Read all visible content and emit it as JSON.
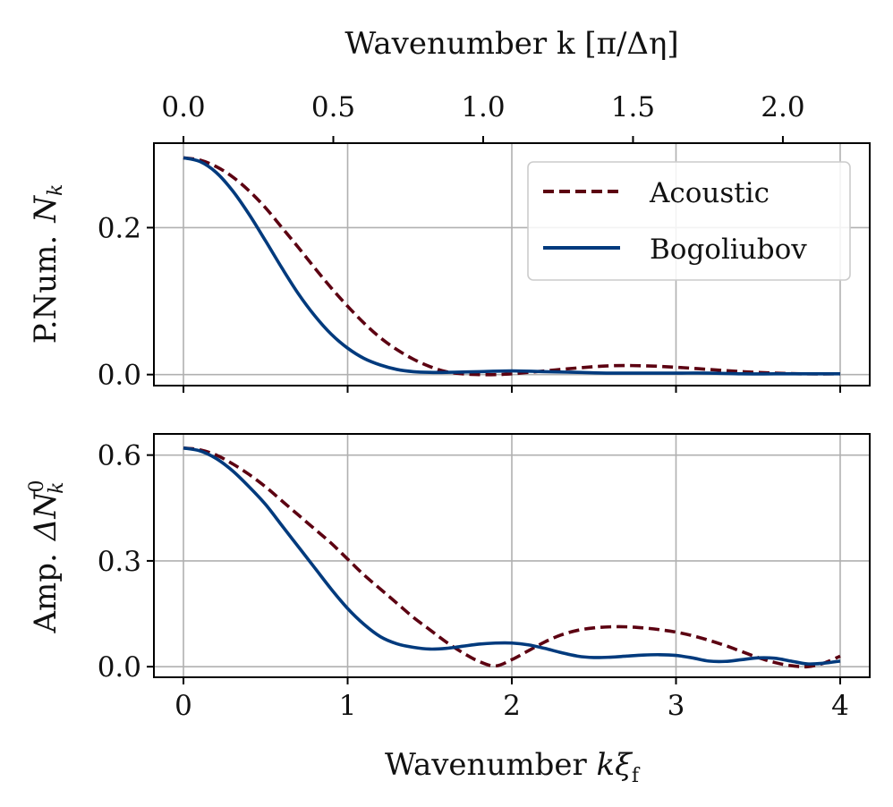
{
  "chart_data": [
    {
      "id": "top",
      "type": "line",
      "top_axis": {
        "label": "Wavenumber k [π/Δη]",
        "ticks": [
          0.0,
          0.5,
          1.0,
          1.5,
          2.0
        ],
        "tick_labels": [
          "0.0",
          "0.5",
          "1.0",
          "1.5",
          "2.0"
        ],
        "scale_per_x": 0.5478
      },
      "xlabel": "",
      "ylabel": "P.Num. N_k",
      "ylabel_text": "P.Num.",
      "ylabel_symbol": "N",
      "ylabel_sub": "k",
      "xlim": [
        -0.18,
        4.18
      ],
      "ylim": [
        -0.015,
        0.315
      ],
      "xticks": [
        0,
        1,
        2,
        3,
        4
      ],
      "yticks": [
        0.0,
        0.2
      ],
      "ytick_labels": [
        "0.0",
        "0.2"
      ],
      "grid": true,
      "legend": {
        "placement": "top-right",
        "entries": [
          "Acoustic",
          "Bogoliubov"
        ]
      },
      "series": [
        {
          "name": "Acoustic",
          "color": "#5c0011",
          "style": "dashed",
          "x": [
            0.0,
            0.1,
            0.2,
            0.3,
            0.4,
            0.5,
            0.6,
            0.7,
            0.8,
            0.9,
            1.0,
            1.1,
            1.2,
            1.3,
            1.4,
            1.5,
            1.6,
            1.7,
            1.8,
            1.9,
            2.0,
            2.2,
            2.4,
            2.6,
            2.8,
            3.0,
            3.2,
            3.4,
            3.6,
            3.8,
            4.0
          ],
          "values": [
            0.295,
            0.292,
            0.283,
            0.269,
            0.25,
            0.227,
            0.2,
            0.173,
            0.145,
            0.118,
            0.093,
            0.07,
            0.05,
            0.034,
            0.021,
            0.011,
            0.004,
            0.001,
            0.0,
            0.0,
            0.001,
            0.005,
            0.009,
            0.012,
            0.012,
            0.01,
            0.007,
            0.004,
            0.002,
            0.001,
            0.001
          ]
        },
        {
          "name": "Bogoliubov",
          "color": "#003a7d",
          "style": "solid",
          "x": [
            0.0,
            0.1,
            0.2,
            0.3,
            0.4,
            0.5,
            0.6,
            0.7,
            0.8,
            0.9,
            1.0,
            1.1,
            1.2,
            1.3,
            1.4,
            1.5,
            1.6,
            1.8,
            2.0,
            2.2,
            2.4,
            2.6,
            2.8,
            3.0,
            3.2,
            3.4,
            3.6,
            3.8,
            4.0
          ],
          "values": [
            0.295,
            0.29,
            0.275,
            0.25,
            0.218,
            0.182,
            0.145,
            0.11,
            0.08,
            0.055,
            0.036,
            0.022,
            0.013,
            0.007,
            0.004,
            0.003,
            0.003,
            0.004,
            0.005,
            0.004,
            0.003,
            0.002,
            0.002,
            0.002,
            0.002,
            0.001,
            0.001,
            0.001,
            0.001
          ]
        }
      ]
    },
    {
      "id": "bottom",
      "type": "line",
      "xlabel": "Wavenumber kξ_f",
      "xlabel_text": "Wavenumber ",
      "xlabel_symbol": "kξ",
      "xlabel_sub": "f",
      "ylabel": "Amp. ΔN_k^0",
      "ylabel_text": "Amp.",
      "ylabel_symbol": "ΔN",
      "ylabel_sub": "k",
      "ylabel_sup": "0",
      "xlim": [
        -0.18,
        4.18
      ],
      "ylim": [
        -0.03,
        0.66
      ],
      "xticks": [
        0,
        1,
        2,
        3,
        4
      ],
      "xtick_labels": [
        "0",
        "1",
        "2",
        "3",
        "4"
      ],
      "yticks": [
        0.0,
        0.3,
        0.6
      ],
      "ytick_labels": [
        "0.0",
        "0.3",
        "0.6"
      ],
      "grid": true,
      "series": [
        {
          "name": "Acoustic",
          "color": "#5c0011",
          "style": "dashed",
          "x": [
            0.0,
            0.1,
            0.2,
            0.3,
            0.4,
            0.5,
            0.6,
            0.7,
            0.8,
            0.9,
            1.0,
            1.1,
            1.2,
            1.3,
            1.4,
            1.5,
            1.6,
            1.7,
            1.8,
            1.9,
            2.0,
            2.1,
            2.2,
            2.3,
            2.4,
            2.5,
            2.6,
            2.7,
            2.8,
            2.9,
            3.0,
            3.1,
            3.2,
            3.3,
            3.4,
            3.5,
            3.6,
            3.7,
            3.8,
            3.9,
            4.0
          ],
          "values": [
            0.62,
            0.615,
            0.6,
            0.575,
            0.545,
            0.51,
            0.47,
            0.43,
            0.39,
            0.35,
            0.305,
            0.26,
            0.22,
            0.18,
            0.14,
            0.105,
            0.07,
            0.04,
            0.015,
            0.002,
            0.02,
            0.045,
            0.07,
            0.09,
            0.103,
            0.11,
            0.113,
            0.113,
            0.11,
            0.105,
            0.098,
            0.088,
            0.075,
            0.06,
            0.043,
            0.026,
            0.012,
            0.003,
            0.0,
            0.01,
            0.03
          ]
        },
        {
          "name": "Bogoliubov",
          "color": "#003a7d",
          "style": "solid",
          "x": [
            0.0,
            0.1,
            0.2,
            0.3,
            0.4,
            0.5,
            0.6,
            0.7,
            0.8,
            0.9,
            1.0,
            1.1,
            1.2,
            1.3,
            1.4,
            1.5,
            1.6,
            1.7,
            1.8,
            1.9,
            2.0,
            2.1,
            2.2,
            2.3,
            2.4,
            2.5,
            2.6,
            2.7,
            2.8,
            2.9,
            3.0,
            3.1,
            3.2,
            3.3,
            3.4,
            3.5,
            3.6,
            3.7,
            3.8,
            3.9,
            4.0
          ],
          "values": [
            0.62,
            0.612,
            0.59,
            0.555,
            0.51,
            0.46,
            0.4,
            0.34,
            0.28,
            0.22,
            0.165,
            0.12,
            0.085,
            0.065,
            0.055,
            0.05,
            0.052,
            0.058,
            0.064,
            0.067,
            0.067,
            0.062,
            0.052,
            0.04,
            0.03,
            0.026,
            0.027,
            0.03,
            0.033,
            0.034,
            0.032,
            0.025,
            0.016,
            0.015,
            0.02,
            0.025,
            0.024,
            0.016,
            0.008,
            0.01,
            0.016
          ]
        }
      ]
    }
  ]
}
